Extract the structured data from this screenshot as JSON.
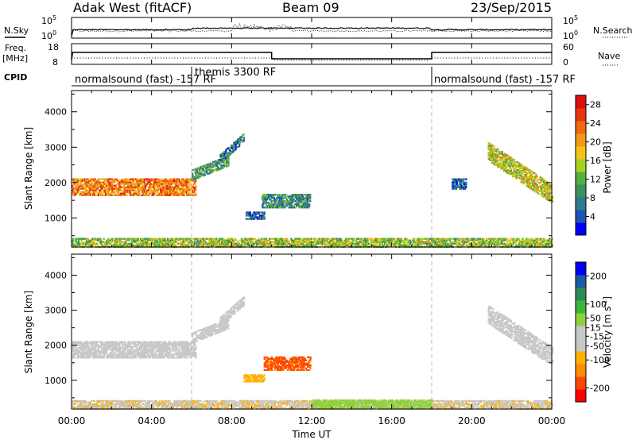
{
  "header": {
    "title": "Adak West (fitACF)",
    "beam": "Beam 09",
    "date": "23/Sep/2015"
  },
  "noise_panel": {
    "left_label": "N.Sky",
    "right_label": "N.Search",
    "left_ticks": [
      "10^5",
      "10^0"
    ],
    "right_ticks": [
      "10^5",
      "10^0"
    ]
  },
  "freq_panel": {
    "left_label_1": "Freq.",
    "left_label_2": "[MHz]",
    "left_ticks": [
      "18",
      "8"
    ],
    "right_label": "Nave",
    "right_ticks": [
      "60",
      "0"
    ]
  },
  "cpid_panel": {
    "label": "CPID",
    "modes": [
      {
        "text": "normalsound (fast) -157 RF",
        "start_hour": 0,
        "end_hour": 6
      },
      {
        "text": "themis 3300 RF",
        "start_hour": 6,
        "end_hour": 18
      },
      {
        "text": "normalsound (fast) -157 RF",
        "start_hour": 18,
        "end_hour": 24
      }
    ]
  },
  "axes": {
    "xlabel": "Time UT",
    "ylabel": "Slant Range [km]",
    "x_ticks": [
      "00:00",
      "04:00",
      "08:00",
      "12:00",
      "16:00",
      "20:00",
      "00:00"
    ],
    "y_ticks": [
      "1000",
      "2000",
      "3000",
      "4000"
    ]
  },
  "colors": {
    "power": [
      "#0000ff",
      "#1d55b3",
      "#2e7a8e",
      "#3d8f5c",
      "#55b040",
      "#a8d020",
      "#f2c41a",
      "#f59a16",
      "#f06a12",
      "#e8360e",
      "#dd1010"
    ],
    "velocity": [
      "#ff0000",
      "#ff4500",
      "#ff8c00",
      "#ffb000",
      "#c8c8c8",
      "#c8c8c8",
      "#8cd23c",
      "#3cb43c",
      "#2e8b57",
      "#1e5aa0",
      "#0000ff"
    ]
  },
  "chart_data": [
    {
      "type": "heatmap",
      "panel": "power",
      "xlabel": "Time UT",
      "ylabel": "Slant Range [km]",
      "colorbar_label": "Power [dB]",
      "colorbar_ticks": [
        "4",
        "8",
        "12",
        "16",
        "20",
        "24",
        "28"
      ],
      "xlim": [
        0,
        24
      ],
      "ylim": [
        180,
        4600
      ],
      "clim": [
        0,
        30
      ],
      "regions": [
        {
          "t0": 0.0,
          "t1": 6.2,
          "r_center": 1900,
          "r_halfwidth": 230,
          "value": 22,
          "note": "band"
        },
        {
          "t0": 6.0,
          "t1": 7.8,
          "r_center_start": 2250,
          "r_center_end": 2650,
          "r_halfwidth": 150,
          "value": 10
        },
        {
          "t0": 7.4,
          "t1": 8.6,
          "r_center_start": 2700,
          "r_center_end": 3300,
          "r_halfwidth": 120,
          "value": 8
        },
        {
          "t0": 9.5,
          "t1": 11.9,
          "r_center": 1500,
          "r_halfwidth": 180,
          "value": 9
        },
        {
          "t0": 8.7,
          "t1": 9.6,
          "r_center": 1100,
          "r_halfwidth": 100,
          "value": 6
        },
        {
          "t0": 20.8,
          "t1": 24.0,
          "r_center_start": 2900,
          "r_center_end": 1700,
          "r_halfwidth": 250,
          "value": 16
        },
        {
          "t0": 19.0,
          "t1": 19.7,
          "r_center": 2000,
          "r_halfwidth": 150,
          "value": 6
        },
        {
          "t0": 0.0,
          "t1": 24.0,
          "r_center": 330,
          "r_halfwidth": 120,
          "value": 14,
          "note": "ground scatter"
        }
      ]
    },
    {
      "type": "heatmap",
      "panel": "velocity",
      "xlabel": "Time UT",
      "ylabel": "Slant Range [km]",
      "colorbar_label": "Velocity [m s^-1]",
      "colorbar_ticks": [
        "-200",
        "-100",
        "-50",
        "-15",
        "15",
        "50",
        "100",
        "200"
      ],
      "xlim": [
        0,
        24
      ],
      "ylim": [
        180,
        4600
      ],
      "clim": [
        -250,
        250
      ],
      "regions": [
        {
          "t0": 0.0,
          "t1": 6.2,
          "r_center": 1900,
          "r_halfwidth": 230,
          "value": 0
        },
        {
          "t0": 6.0,
          "t1": 7.8,
          "r_center_start": 2250,
          "r_center_end": 2650,
          "r_halfwidth": 150,
          "value": 0
        },
        {
          "t0": 7.4,
          "t1": 8.6,
          "r_center_start": 2700,
          "r_center_end": 3300,
          "r_halfwidth": 120,
          "value": 0
        },
        {
          "t0": 9.6,
          "t1": 11.9,
          "r_center": 1500,
          "r_halfwidth": 180,
          "value": -170
        },
        {
          "t0": 8.6,
          "t1": 9.6,
          "r_center": 1100,
          "r_halfwidth": 110,
          "value": -90
        },
        {
          "t0": 20.8,
          "t1": 24.0,
          "r_center_start": 2900,
          "r_center_end": 1700,
          "r_halfwidth": 250,
          "value": 0
        },
        {
          "t0": 0.0,
          "t1": 24.0,
          "r_center": 330,
          "r_halfwidth": 120,
          "value": -60,
          "note": "ground scatter"
        },
        {
          "t0": 12.0,
          "t1": 18.0,
          "r_center": 350,
          "r_halfwidth": 120,
          "value": 40
        }
      ]
    }
  ]
}
